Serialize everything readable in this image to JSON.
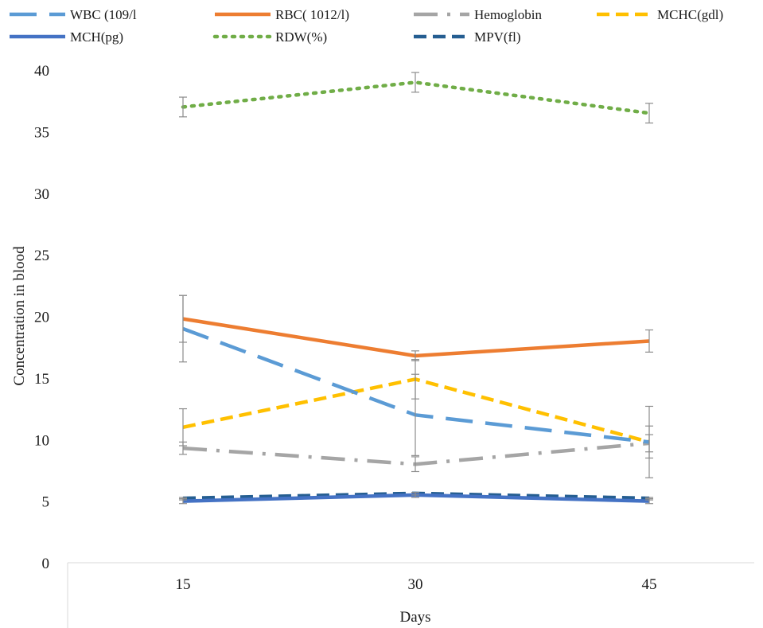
{
  "chart_data": {
    "type": "line",
    "xlabel": "Days",
    "ylabel": "Concentration in blood",
    "categories": [
      "15",
      "30",
      "45"
    ],
    "ylim": [
      0,
      40
    ],
    "yticks": [
      0,
      5,
      10,
      15,
      20,
      25,
      30,
      35,
      40
    ],
    "grid": false,
    "legend_position": "top",
    "series": [
      {
        "name": "WBC (109/l",
        "values": [
          19.0,
          12.0,
          9.8
        ],
        "errors": [
          2.7,
          3.3,
          2.9
        ],
        "color": "#5b9bd5",
        "style": "longdash"
      },
      {
        "name": "RBC( 1012/l)",
        "values": [
          19.8,
          16.8,
          18.0
        ],
        "errors": [
          1.9,
          0.4,
          0.9
        ],
        "color": "#ed7d31",
        "style": "solid"
      },
      {
        "name": "Hemoglobin",
        "values": [
          9.3,
          8.0,
          9.7
        ],
        "errors": [
          0.5,
          0.6,
          0.7
        ],
        "color": "#a5a5a5",
        "style": "dashdot"
      },
      {
        "name": "MCHC(gdl)",
        "values": [
          11.0,
          14.9,
          9.8
        ],
        "errors": [
          1.5,
          1.6,
          1.3
        ],
        "color": "#ffc000",
        "style": "dash"
      },
      {
        "name": "MCH(pg)",
        "values": [
          5.0,
          5.5,
          5.0
        ],
        "errors": [
          0.2,
          0.2,
          0.2
        ],
        "color": "#4472c4",
        "style": "solid"
      },
      {
        "name": "RDW(%)",
        "values": [
          37.0,
          39.0,
          36.5
        ],
        "errors": [
          0.8,
          0.8,
          0.8
        ],
        "color": "#70ad47",
        "style": "dot"
      },
      {
        "name": "MPV(fl)",
        "values": [
          5.2,
          5.6,
          5.2
        ],
        "errors": [
          0.1,
          0.1,
          0.1
        ],
        "color": "#255e91",
        "style": "dash"
      }
    ]
  }
}
